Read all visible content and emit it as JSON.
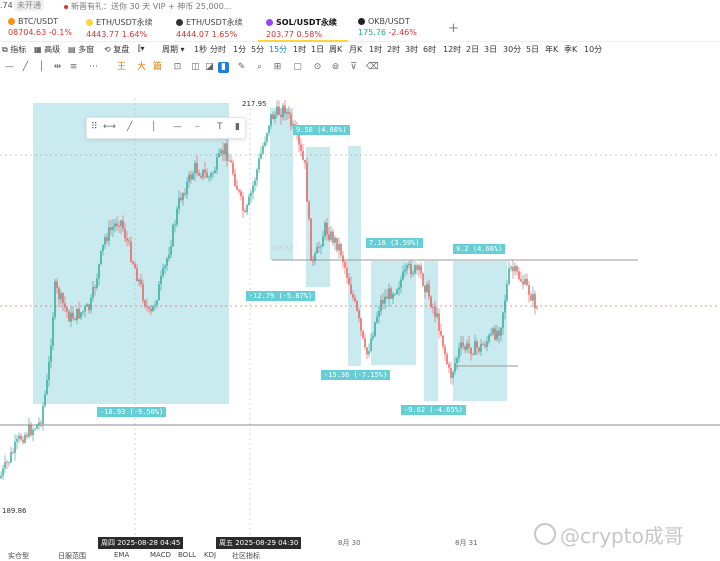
{
  "statusbar": {
    "price": ".74",
    "tag": "未开通",
    "promo": "新晋有礼：送你 30 天 VIP + 神币 25,000..."
  },
  "tabs": [
    {
      "name": "BTC/USDT",
      "price": "08704.63",
      "change": "-0.1%",
      "color": "#e03131",
      "icon": "btc-icon"
    },
    {
      "name": "ETH/USDT永续",
      "price": "4443.77",
      "change": "1.64%",
      "color": "#e03131",
      "icon": "eth-icon"
    },
    {
      "name": "ETH/USDT永续",
      "price": "4444.07",
      "change": "1.65%",
      "color": "#e03131",
      "icon": "eth-icon"
    },
    {
      "name": "SOL/USDT永续",
      "price": "203.77",
      "change": "0.58%",
      "color": "#e03131",
      "icon": "sol-icon",
      "active": true
    },
    {
      "name": "OKB/USDT",
      "price": "175.76",
      "change": "-2.46%",
      "color": "#12b886",
      "icon": "okb-icon"
    }
  ],
  "toolbar": {
    "indicator": "指标",
    "layout": "高级",
    "multi": "多窗",
    "copy": "复盘",
    "period_label": "周期",
    "intervals": [
      "1秒",
      "分时",
      "1分",
      "5分",
      "15分",
      "1时",
      "1日",
      "周K",
      "1时",
      "2时",
      "3时",
      "6时",
      "12时",
      "2日",
      "3日",
      "30分",
      "5日",
      "年K",
      "季K",
      "10分"
    ],
    "active_interval": "15分"
  },
  "drawtools": {
    "icons": [
      "horizontal-line-icon",
      "trend-line-icon",
      "vertical-line-icon",
      "ray-icon",
      "more-icon",
      "fib-icon",
      "text-icon",
      "brush-icon",
      "pen-icon",
      "measure-icon",
      "bookmark-icon",
      "pencil-icon",
      "ruler-icon",
      "note-icon",
      "magnet-icon",
      "clock-icon",
      "filter-icon",
      "trash-icon"
    ]
  },
  "chart": {
    "price_high": "217.95",
    "price_low": "189.86",
    "faint_price": "206.57",
    "labels": [
      {
        "text": "9.58 (4.66%)"
      },
      {
        "text": "-12.79 (-5.87%)"
      },
      {
        "text": "7.16 (3.59%)"
      },
      {
        "text": "-15.36 (-7.15%)"
      },
      {
        "text": "9.2 (4.66%)"
      },
      {
        "text": "-9.62 (-4.65%)"
      },
      {
        "text": "-18.93 (-9.50%)"
      }
    ]
  },
  "time_axis": {
    "highlight1": "周四 2025-08-28 04:45",
    "highlight2": "周五 2025-08-29 04:30",
    "tick1": "8月 30",
    "tick2": "8月 31"
  },
  "indicators_bar": {
    "items": [
      "实仓型",
      "日服范围",
      "EMA",
      "MACD",
      "BOLL",
      "KDJ",
      "社区指标"
    ]
  },
  "watermark": "@crypto成哥"
}
